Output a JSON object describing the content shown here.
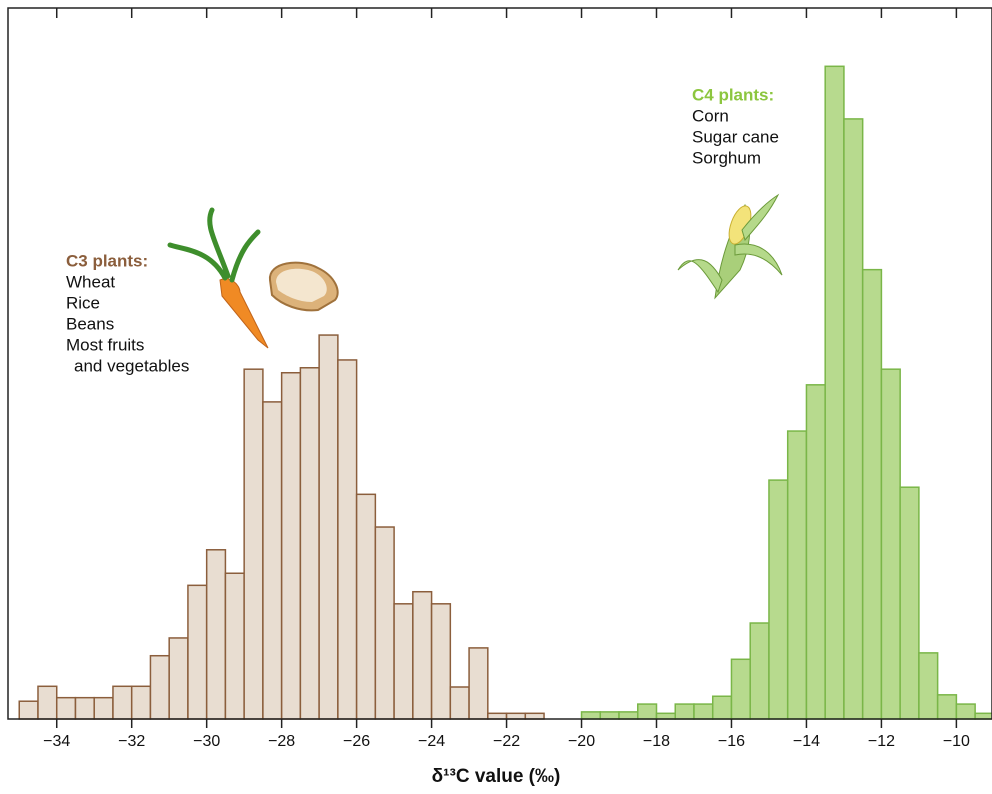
{
  "chart_data": {
    "type": "histogram",
    "x_label": "δ¹³C value (‰)",
    "annotations": {
      "c3": [
        "C3 plants:",
        "Wheat",
        "Rice",
        "Beans",
        "Most fruits",
        "and vegetables"
      ],
      "c4": [
        "C4 plants:",
        "Corn",
        "Sugar cane",
        "Sorghum"
      ]
    },
    "xlim": [
      -35.3,
      -9.05
    ],
    "ylim": [
      0,
      100
    ],
    "xticks": [
      {
        "value": -34,
        "label": "−34"
      },
      {
        "value": -32,
        "label": "−32"
      },
      {
        "value": -30,
        "label": "−30"
      },
      {
        "value": -28,
        "label": "−28"
      },
      {
        "value": -26,
        "label": "−26"
      },
      {
        "value": -24,
        "label": "−24"
      },
      {
        "value": -22,
        "label": "−22"
      },
      {
        "value": -20,
        "label": "−20"
      },
      {
        "value": -18,
        "label": "−18"
      },
      {
        "value": -16,
        "label": "−16"
      },
      {
        "value": -14,
        "label": "−14"
      },
      {
        "value": -12,
        "label": "−12"
      },
      {
        "value": -10,
        "label": "−10"
      }
    ],
    "series": [
      {
        "color": "#e8ddd1",
        "edgecolor": "#8b5e3c",
        "bins": [
          -35,
          -34.5,
          -34,
          -33.5,
          -33,
          -32.5,
          -32,
          -31.5,
          -31,
          -30.5,
          -30,
          -29.5,
          -29,
          -28.5,
          -28,
          -27.5,
          -27,
          -26.5,
          -26,
          -25.5,
          -25,
          -24.5,
          -24,
          -23.5,
          -23,
          -22.5,
          -22,
          -21.5,
          -21
        ],
        "values": [
          2.5,
          4.6,
          3.0,
          3.0,
          3.0,
          4.6,
          4.6,
          8.9,
          11.4,
          18.8,
          23.8,
          20.5,
          49.2,
          44.6,
          48.7,
          49.4,
          54.0,
          50.5,
          31.6,
          27.0,
          16.2,
          17.9,
          16.2,
          4.5,
          10.0,
          0.8,
          0.8,
          0.8
        ]
      },
      {
        "color": "#b7da8e",
        "edgecolor": "#7ab648",
        "bins": [
          -20,
          -19.5,
          -19,
          -18.5,
          -18,
          -17.5,
          -17,
          -16.5,
          -16,
          -15.5,
          -15,
          -14.5,
          -14,
          -13.5,
          -13,
          -12.5,
          -12,
          -11.5,
          -11,
          -10.5,
          -10,
          -9.5,
          -9
        ],
        "values": [
          1.0,
          1.0,
          1.0,
          2.1,
          0.8,
          2.1,
          2.1,
          3.2,
          8.4,
          13.5,
          33.6,
          40.5,
          47.0,
          91.8,
          84.4,
          63.2,
          49.2,
          32.6,
          9.3,
          3.4,
          2.1,
          0.8
        ]
      }
    ]
  }
}
